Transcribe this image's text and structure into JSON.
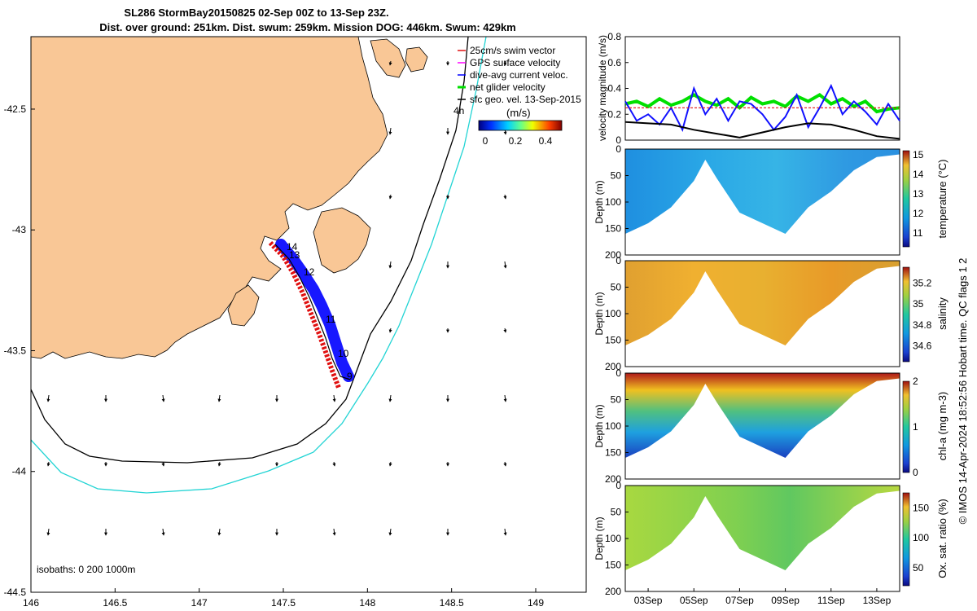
{
  "title_line1": "SL286 StormBay20150825 02-Sep 00Z to 13-Sep 23Z.",
  "title_line2": "Dist. over ground: 251km. Dist. swum: 259km. Mission DOG: 446km. Swum: 429km",
  "side_label": "© IMOS 14-Apr-2024 18:52:56 Hobart time. QC flags 1  2",
  "colors": {
    "land": "#f9c796",
    "glider_track": "#1010ff",
    "swim_vector": "#e01010",
    "gps_vector": "#ff00ff",
    "current_vector": "#0000ff",
    "net_velocity": "#00e000",
    "isobath_200": "#000000",
    "isobath_1000": "#20d8d8"
  },
  "chart_data": [
    {
      "type": "map",
      "name": "track-map",
      "x_ticks": [
        "146",
        "146.5",
        "147",
        "147.5",
        "148",
        "148.5",
        "149"
      ],
      "y_ticks": [
        "-42.5",
        "-43",
        "-43.5",
        "-44",
        "-44.5"
      ],
      "xlim": [
        146,
        149.3
      ],
      "ylim": [
        -44.5,
        -42.2
      ],
      "legend": [
        {
          "label": "25cm/s swim vector",
          "color": "#e01010"
        },
        {
          "label": "GPS surface velocity",
          "color": "#ff00ff"
        },
        {
          "label": "dive-avg current veloc.",
          "color": "#0000ff"
        },
        {
          "label": "net glider velocity",
          "color": "#00e000"
        },
        {
          "label": "sfc geo. vel. 13-Sep-2015",
          "color": "#000000"
        }
      ],
      "legend_extra": "4h",
      "colorbar_unit": "(m/s)",
      "colorbar_ticks": [
        "0",
        "0.2",
        "0.4"
      ],
      "isobaths_label": "isobaths: 0   200   1000m",
      "day_labels": [
        "14",
        "13",
        "12",
        "11",
        "10",
        "9"
      ],
      "track": [
        [
          147.42,
          -43.09
        ],
        [
          147.48,
          -43.14
        ],
        [
          147.52,
          -43.22
        ],
        [
          147.58,
          -43.3
        ],
        [
          147.62,
          -43.38
        ],
        [
          147.66,
          -43.46
        ],
        [
          147.7,
          -43.53
        ],
        [
          147.74,
          -43.6
        ],
        [
          147.8,
          -43.65
        ]
      ]
    },
    {
      "type": "line",
      "name": "velocity-panel",
      "ylabel": "velocity magnitude (m/s)",
      "y_ticks": [
        "0",
        "0.2",
        "0.4",
        "0.6",
        "0.8"
      ],
      "ylim": [
        0,
        0.8
      ],
      "xlim": [
        2,
        14
      ],
      "series": [
        {
          "name": "net glider velocity",
          "color": "#00e000",
          "x": [
            2.0,
            2.5,
            3.0,
            3.5,
            4.0,
            4.5,
            5.0,
            5.5,
            6.0,
            6.5,
            7.0,
            7.5,
            8.0,
            8.5,
            9.0,
            9.5,
            10.0,
            10.5,
            11.0,
            11.5,
            12.0,
            12.5,
            13.0,
            13.5,
            14.0
          ],
          "values": [
            0.28,
            0.3,
            0.26,
            0.32,
            0.27,
            0.3,
            0.35,
            0.3,
            0.27,
            0.32,
            0.25,
            0.33,
            0.28,
            0.3,
            0.26,
            0.34,
            0.3,
            0.35,
            0.28,
            0.32,
            0.26,
            0.3,
            0.22,
            0.24,
            0.25
          ]
        },
        {
          "name": "dive-avg current veloc.",
          "color": "#1010ff",
          "x": [
            2.0,
            2.5,
            3.0,
            3.5,
            4.0,
            4.5,
            5.0,
            5.5,
            6.0,
            6.5,
            7.0,
            7.5,
            8.0,
            8.5,
            9.0,
            9.5,
            10.0,
            10.5,
            11.0,
            11.5,
            12.0,
            12.5,
            13.0,
            13.5,
            14.0
          ],
          "values": [
            0.3,
            0.15,
            0.2,
            0.12,
            0.25,
            0.08,
            0.4,
            0.2,
            0.32,
            0.15,
            0.3,
            0.28,
            0.2,
            0.08,
            0.18,
            0.35,
            0.1,
            0.25,
            0.42,
            0.2,
            0.3,
            0.22,
            0.12,
            0.28,
            0.15
          ]
        },
        {
          "name": "sfc geo. vel.",
          "color": "#000000",
          "x": [
            2.0,
            3.0,
            4.0,
            5.0,
            6.0,
            7.0,
            8.0,
            9.0,
            10.0,
            11.0,
            12.0,
            13.0,
            14.0
          ],
          "values": [
            0.14,
            0.13,
            0.12,
            0.08,
            0.05,
            0.02,
            0.06,
            0.1,
            0.13,
            0.12,
            0.08,
            0.03,
            0.01
          ]
        },
        {
          "name": "25cm/s swim vector",
          "color": "#e01010",
          "x": [
            2.0,
            14.0
          ],
          "values": [
            0.25,
            0.25
          ]
        }
      ]
    },
    {
      "type": "heatmap",
      "name": "temperature-section",
      "ylabel": "Depth (m)",
      "y_ticks": [
        "0",
        "50",
        "100",
        "150",
        "200"
      ],
      "ylim": [
        200,
        0
      ],
      "colorbar_label": "temperature (°C)",
      "colorbar_ticks": [
        "15",
        "14",
        "13",
        "12",
        "11"
      ],
      "colorbar_range": [
        10.3,
        15.2
      ],
      "bottom_depth": [
        [
          2,
          160
        ],
        [
          3,
          140
        ],
        [
          4,
          110
        ],
        [
          5,
          60
        ],
        [
          5.5,
          20
        ],
        [
          6,
          55
        ],
        [
          7,
          120
        ],
        [
          8,
          140
        ],
        [
          9,
          160
        ],
        [
          10,
          110
        ],
        [
          11,
          80
        ],
        [
          12,
          40
        ],
        [
          13,
          15
        ],
        [
          14,
          10
        ]
      ]
    },
    {
      "type": "heatmap",
      "name": "salinity-section",
      "ylabel": "Depth (m)",
      "y_ticks": [
        "0",
        "50",
        "100",
        "150",
        "200"
      ],
      "ylim": [
        200,
        0
      ],
      "colorbar_label": "salinity",
      "colorbar_ticks": [
        "35.2",
        "35",
        "34.8",
        "34.6"
      ],
      "colorbar_range": [
        34.45,
        35.35
      ]
    },
    {
      "type": "heatmap",
      "name": "chla-section",
      "ylabel": "Depth (m)",
      "y_ticks": [
        "0",
        "50",
        "100",
        "150",
        "200"
      ],
      "ylim": [
        200,
        0
      ],
      "colorbar_label": "chl-a (mg m-3)",
      "colorbar_ticks": [
        "2",
        "1",
        "0"
      ],
      "colorbar_range": [
        0,
        2
      ]
    },
    {
      "type": "heatmap",
      "name": "oxygen-section",
      "ylabel": "Depth (m)",
      "y_ticks": [
        "0",
        "50",
        "100",
        "150",
        "200"
      ],
      "ylim": [
        200,
        0
      ],
      "colorbar_label": "Ox. sat. ratio (%)",
      "colorbar_ticks": [
        "150",
        "100",
        "50"
      ],
      "colorbar_range": [
        20,
        175
      ],
      "x_ticks": [
        "03Sep",
        "05Sep",
        "07Sep",
        "09Sep",
        "11Sep",
        "13Sep"
      ]
    }
  ]
}
